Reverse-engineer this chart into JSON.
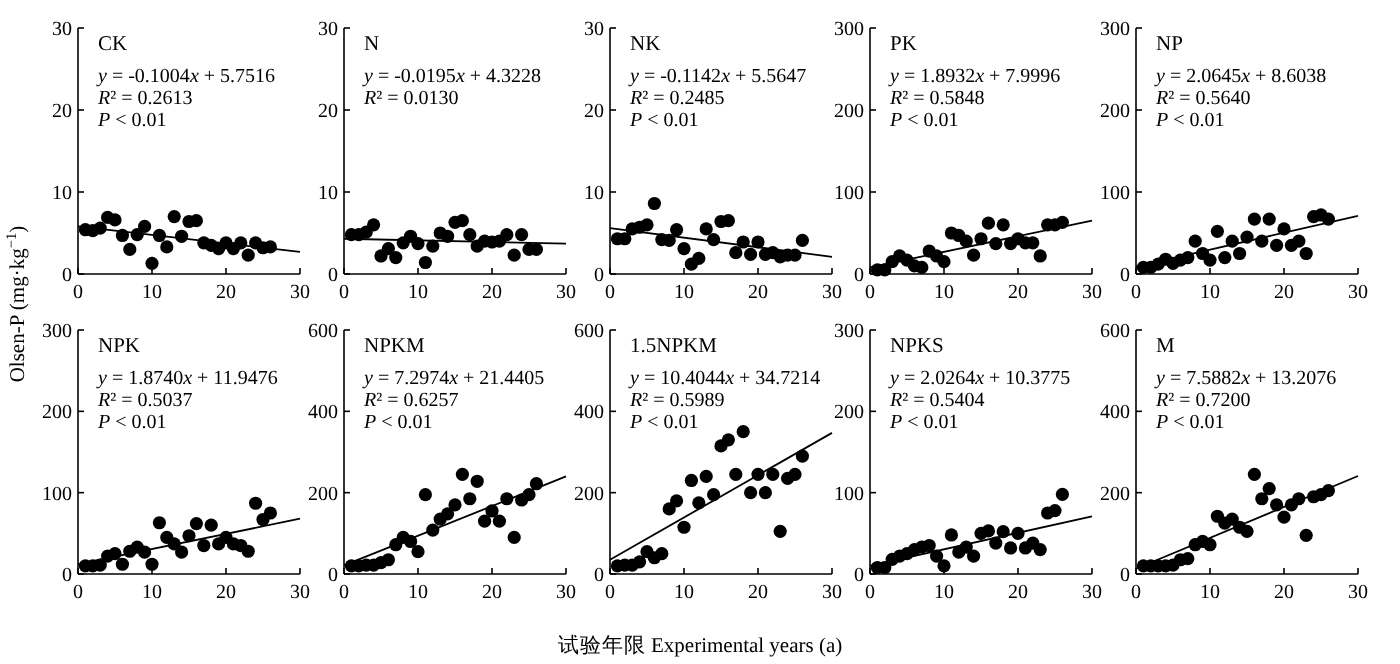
{
  "chart_data": [
    {
      "type": "scatter",
      "title": "CK",
      "annotations": [
        "y = -0.1004x + 5.7516",
        "R² = 0.2613",
        "P < 0.01"
      ],
      "xlim": [
        0,
        30
      ],
      "xticks": [
        0,
        10,
        20,
        30
      ],
      "ylim": [
        0,
        30
      ],
      "yticks": [
        0,
        10,
        20,
        30
      ],
      "series": [
        {
          "marker": "circle",
          "color": "#000000",
          "x": [
            1,
            2,
            3,
            4,
            5,
            6,
            7,
            8,
            9,
            10,
            11,
            12,
            13,
            14,
            15,
            16,
            17,
            18,
            19,
            20,
            21,
            22,
            23,
            24,
            25,
            26
          ],
          "values": [
            5.4,
            5.3,
            5.6,
            6.9,
            6.6,
            4.7,
            3.0,
            4.8,
            5.8,
            1.3,
            4.7,
            3.3,
            7.0,
            4.6,
            6.4,
            6.5,
            3.8,
            3.5,
            3.1,
            3.8,
            3.1,
            3.8,
            2.3,
            3.8,
            3.2,
            3.3
          ]
        },
        {
          "type": "line",
          "color": "#000000",
          "x": [
            0,
            30
          ],
          "values": [
            5.8,
            2.7
          ]
        }
      ]
    },
    {
      "type": "scatter",
      "title": "N",
      "annotations": [
        "y = -0.0195x + 4.3228",
        "R² = 0.0130"
      ],
      "xlim": [
        0,
        30
      ],
      "xticks": [
        0,
        10,
        20,
        30
      ],
      "ylim": [
        0,
        30
      ],
      "yticks": [
        0,
        10,
        20,
        30
      ],
      "series": [
        {
          "marker": "circle",
          "color": "#000000",
          "x": [
            1,
            2,
            3,
            4,
            5,
            6,
            7,
            8,
            9,
            10,
            11,
            12,
            13,
            14,
            15,
            16,
            17,
            18,
            19,
            20,
            21,
            22,
            23,
            24,
            25,
            26
          ],
          "values": [
            4.8,
            4.8,
            5.1,
            6.0,
            2.2,
            3.1,
            2.0,
            3.8,
            4.6,
            3.7,
            1.4,
            3.4,
            5.0,
            4.6,
            6.3,
            6.5,
            4.8,
            3.4,
            4.0,
            3.9,
            4.0,
            4.8,
            2.3,
            4.8,
            3.0,
            3.0
          ]
        },
        {
          "type": "line",
          "color": "#000000",
          "x": [
            0,
            30
          ],
          "values": [
            4.3,
            3.7
          ]
        }
      ]
    },
    {
      "type": "scatter",
      "title": "NK",
      "annotations": [
        "y = -0.1142x + 5.5647",
        "R² = 0.2485",
        "P < 0.01"
      ],
      "xlim": [
        0,
        30
      ],
      "xticks": [
        0,
        10,
        20,
        30
      ],
      "ylim": [
        0,
        30
      ],
      "yticks": [
        0,
        10,
        20,
        30
      ],
      "series": [
        {
          "marker": "circle",
          "color": "#000000",
          "x": [
            1,
            2,
            3,
            4,
            5,
            6,
            7,
            8,
            9,
            10,
            11,
            12,
            13,
            14,
            15,
            16,
            17,
            18,
            19,
            20,
            21,
            22,
            23,
            24,
            25,
            26
          ],
          "values": [
            4.3,
            4.3,
            5.5,
            5.7,
            6.0,
            8.6,
            4.2,
            4.1,
            5.4,
            3.1,
            1.2,
            1.9,
            5.5,
            4.2,
            6.4,
            6.5,
            2.6,
            3.9,
            2.4,
            3.9,
            2.4,
            2.6,
            2.1,
            2.3,
            2.3,
            4.1
          ]
        },
        {
          "type": "line",
          "color": "#000000",
          "x": [
            0,
            30
          ],
          "values": [
            5.6,
            2.1
          ]
        }
      ]
    },
    {
      "type": "scatter",
      "title": "PK",
      "annotations": [
        "y = 1.8932x + 7.9996",
        "R² = 0.5848",
        "P < 0.01"
      ],
      "xlim": [
        0,
        30
      ],
      "xticks": [
        0,
        10,
        20,
        30
      ],
      "ylim": [
        0,
        300
      ],
      "yticks": [
        0,
        100,
        200,
        300
      ],
      "series": [
        {
          "marker": "circle",
          "color": "#000000",
          "x": [
            1,
            2,
            3,
            4,
            5,
            6,
            7,
            8,
            9,
            10,
            11,
            12,
            13,
            14,
            15,
            16,
            17,
            18,
            19,
            20,
            21,
            22,
            23,
            24,
            25,
            26
          ],
          "values": [
            5,
            5,
            15,
            22,
            17,
            10,
            8,
            28,
            22,
            15,
            50,
            47,
            40,
            23,
            43,
            62,
            37,
            60,
            37,
            43,
            38,
            38,
            22,
            60,
            60,
            63
          ]
        },
        {
          "type": "line",
          "color": "#000000",
          "x": [
            0,
            30
          ],
          "values": [
            8,
            65
          ]
        }
      ]
    },
    {
      "type": "scatter",
      "title": "NP",
      "annotations": [
        "y = 2.0645x + 8.6038",
        "R² = 0.5640",
        "P < 0.01"
      ],
      "xlim": [
        0,
        30
      ],
      "xticks": [
        0,
        10,
        20,
        30
      ],
      "ylim": [
        0,
        300
      ],
      "yticks": [
        0,
        100,
        200,
        300
      ],
      "series": [
        {
          "marker": "circle",
          "color": "#000000",
          "x": [
            1,
            2,
            3,
            4,
            5,
            6,
            7,
            8,
            9,
            10,
            11,
            12,
            13,
            14,
            15,
            16,
            17,
            18,
            19,
            20,
            21,
            22,
            23,
            24,
            25,
            26
          ],
          "values": [
            8,
            8,
            12,
            18,
            13,
            17,
            20,
            40,
            25,
            17,
            52,
            20,
            40,
            25,
            45,
            67,
            40,
            67,
            35,
            55,
            35,
            40,
            25,
            70,
            72,
            67
          ]
        },
        {
          "type": "line",
          "color": "#000000",
          "x": [
            0,
            30
          ],
          "values": [
            9,
            71
          ]
        }
      ]
    },
    {
      "type": "scatter",
      "title": "NPK",
      "ylabel": "Olsen-P (mg·kg$^{−1}$)",
      "annotations": [
        "y = 1.8740x + 11.9476",
        "R² = 0.5037",
        "P < 0.01"
      ],
      "xlim": [
        0,
        30
      ],
      "xticks": [
        0,
        10,
        20,
        30
      ],
      "ylim": [
        0,
        300
      ],
      "yticks": [
        0,
        100,
        200,
        300
      ],
      "series": [
        {
          "marker": "circle",
          "color": "#000000",
          "x": [
            1,
            2,
            3,
            4,
            5,
            6,
            7,
            8,
            9,
            10,
            11,
            12,
            13,
            14,
            15,
            16,
            17,
            18,
            19,
            20,
            21,
            22,
            23,
            24,
            25,
            26
          ],
          "values": [
            10,
            10,
            11,
            22,
            25,
            12,
            28,
            33,
            27,
            12,
            63,
            45,
            37,
            27,
            47,
            62,
            35,
            60,
            37,
            45,
            37,
            35,
            28,
            87,
            67,
            75
          ]
        },
        {
          "type": "line",
          "color": "#000000",
          "x": [
            0,
            30
          ],
          "values": [
            12,
            68
          ]
        }
      ]
    },
    {
      "type": "scatter",
      "title": "NPKM",
      "annotations": [
        "y = 7.2974x + 21.4405",
        "R² = 0.6257",
        "P < 0.01"
      ],
      "xlim": [
        0,
        30
      ],
      "xticks": [
        0,
        10,
        20,
        30
      ],
      "ylim": [
        0,
        600
      ],
      "yticks": [
        0,
        200,
        400,
        600
      ],
      "series": [
        {
          "marker": "circle",
          "color": "#000000",
          "x": [
            1,
            2,
            3,
            4,
            5,
            6,
            7,
            8,
            9,
            10,
            11,
            12,
            13,
            14,
            15,
            16,
            17,
            18,
            19,
            20,
            21,
            22,
            23,
            24,
            25,
            26
          ],
          "values": [
            20,
            20,
            22,
            22,
            28,
            35,
            72,
            90,
            80,
            55,
            195,
            108,
            135,
            148,
            170,
            245,
            185,
            228,
            130,
            155,
            130,
            185,
            90,
            182,
            195,
            222
          ]
        },
        {
          "type": "line",
          "color": "#000000",
          "x": [
            0,
            30
          ],
          "values": [
            21,
            240
          ]
        }
      ]
    },
    {
      "type": "scatter",
      "title": "1.5NPKM",
      "xlabel": "试验年限 Experimental years (a)",
      "annotations": [
        "y = 10.4044x + 34.7214",
        "R² = 0.5989",
        "P < 0.01"
      ],
      "xlim": [
        0,
        30
      ],
      "xticks": [
        0,
        10,
        20,
        30
      ],
      "ylim": [
        0,
        600
      ],
      "yticks": [
        0,
        200,
        400,
        600
      ],
      "series": [
        {
          "marker": "circle",
          "color": "#000000",
          "x": [
            1,
            2,
            3,
            4,
            5,
            6,
            7,
            8,
            9,
            10,
            11,
            12,
            13,
            14,
            15,
            16,
            17,
            18,
            19,
            20,
            21,
            22,
            23,
            24,
            25,
            26
          ],
          "values": [
            20,
            22,
            22,
            30,
            55,
            40,
            50,
            160,
            180,
            115,
            230,
            175,
            240,
            195,
            315,
            330,
            245,
            350,
            200,
            245,
            200,
            245,
            105,
            235,
            245,
            290
          ]
        },
        {
          "type": "line",
          "color": "#000000",
          "x": [
            0,
            30
          ],
          "values": [
            35,
            347
          ]
        }
      ]
    },
    {
      "type": "scatter",
      "title": "NPKS",
      "annotations": [
        "y = 2.0264x + 10.3775",
        "R² = 0.5404",
        "P < 0.01"
      ],
      "xlim": [
        0,
        30
      ],
      "xticks": [
        0,
        10,
        20,
        30
      ],
      "ylim": [
        0,
        300
      ],
      "yticks": [
        0,
        100,
        200,
        300
      ],
      "series": [
        {
          "marker": "circle",
          "color": "#000000",
          "x": [
            1,
            2,
            3,
            4,
            5,
            6,
            7,
            8,
            9,
            10,
            11,
            12,
            13,
            14,
            15,
            16,
            17,
            18,
            19,
            20,
            21,
            22,
            23,
            24,
            25,
            26
          ],
          "values": [
            8,
            8,
            18,
            22,
            25,
            30,
            33,
            35,
            22,
            10,
            48,
            27,
            33,
            22,
            50,
            53,
            38,
            52,
            32,
            50,
            32,
            38,
            30,
            75,
            78,
            98
          ]
        },
        {
          "type": "line",
          "color": "#000000",
          "x": [
            0,
            30
          ],
          "values": [
            10,
            71
          ]
        }
      ]
    },
    {
      "type": "scatter",
      "title": "M",
      "annotations": [
        "y = 7.5882x + 13.2076",
        "R² = 0.7200",
        "P < 0.01"
      ],
      "xlim": [
        0,
        30
      ],
      "xticks": [
        0,
        10,
        20,
        30
      ],
      "ylim": [
        0,
        600
      ],
      "yticks": [
        0,
        200,
        400,
        600
      ],
      "series": [
        {
          "marker": "circle",
          "color": "#000000",
          "x": [
            1,
            2,
            3,
            4,
            5,
            6,
            7,
            8,
            9,
            10,
            11,
            12,
            13,
            14,
            15,
            16,
            17,
            18,
            19,
            20,
            21,
            22,
            23,
            24,
            25,
            26
          ],
          "values": [
            20,
            20,
            20,
            20,
            22,
            35,
            38,
            72,
            80,
            72,
            142,
            125,
            135,
            115,
            105,
            245,
            185,
            210,
            170,
            140,
            170,
            185,
            95,
            190,
            195,
            205
          ]
        },
        {
          "type": "line",
          "color": "#000000",
          "x": [
            0,
            30
          ],
          "values": [
            13,
            241
          ]
        }
      ]
    }
  ]
}
